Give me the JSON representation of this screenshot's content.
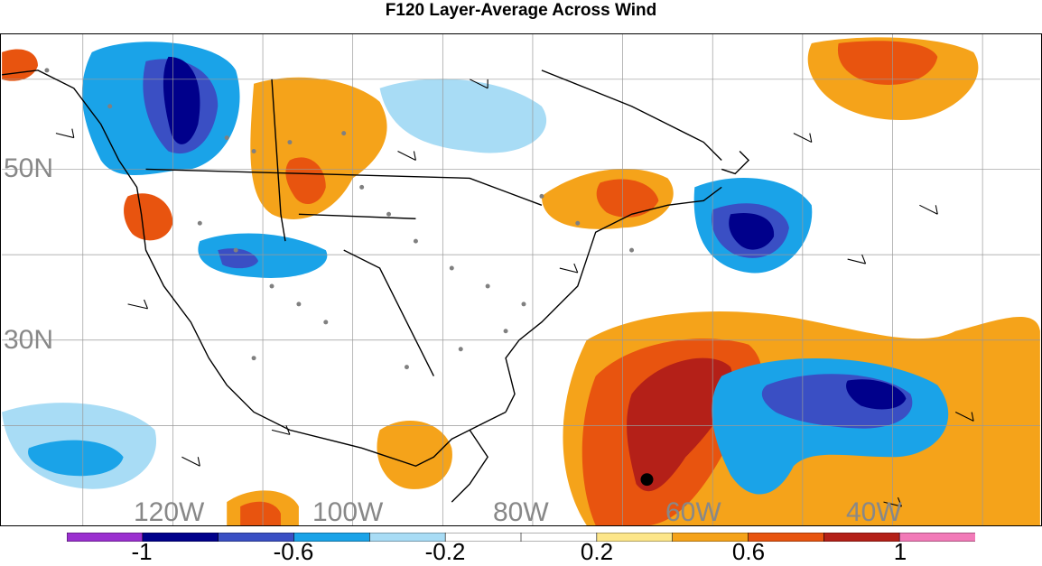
{
  "title": "F120 Layer-Average Across Wind",
  "lat_labels": [
    "50N",
    "30N"
  ],
  "lon_labels": [
    "120W",
    "100W",
    "80W",
    "60W",
    "40W"
  ],
  "colorbar": {
    "tick_labels": [
      "-1",
      "-0.6",
      "-0.2",
      "0.2",
      "0.6",
      "1"
    ],
    "colors": [
      "#9b30d0",
      "#00008b",
      "#3a4fc4",
      "#1aa3e8",
      "#a8dcf5",
      "#ffffff",
      "#ffffff",
      "#fde68a",
      "#f5a31a",
      "#e8540f",
      "#b42018",
      "#f27ab8"
    ]
  }
}
